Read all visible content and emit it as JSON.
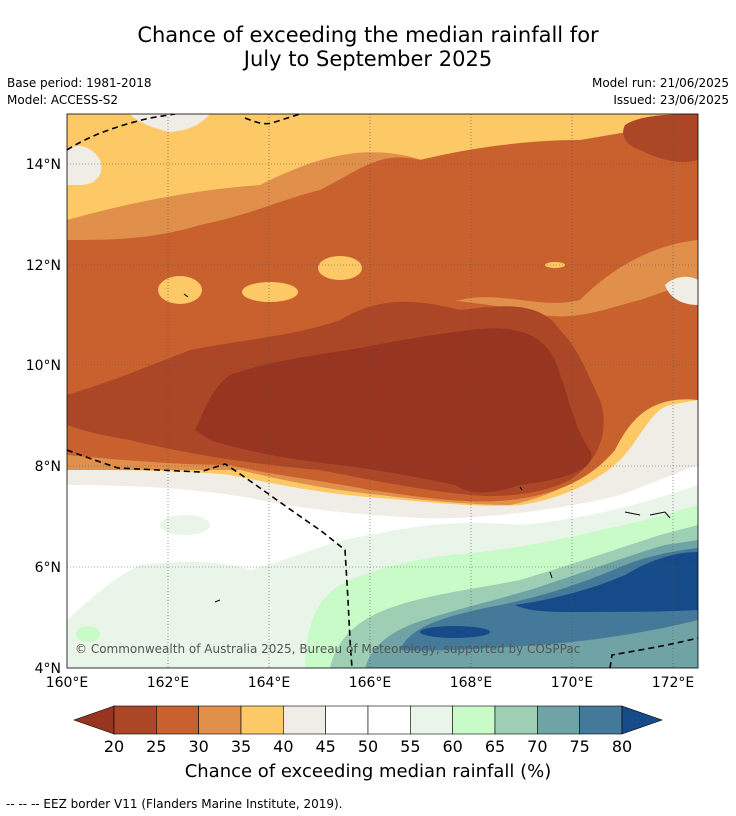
{
  "header": {
    "title_line1": "Chance of exceeding the median rainfall for",
    "title_line2": "July to September 2025",
    "base_period": "Base period: 1981-2018",
    "model": "Model: ACCESS-S2",
    "model_run": "Model run: 21/06/2025",
    "issued": "Issued: 23/06/2025"
  },
  "map": {
    "lat_ticks": [
      "14°N",
      "12°N",
      "10°N",
      "8°N",
      "6°N",
      "4°N"
    ],
    "lon_ticks": [
      "160°E",
      "162°E",
      "164°E",
      "166°E",
      "168°E",
      "170°E",
      "172°E"
    ],
    "lat_values": [
      14,
      12,
      10,
      8,
      6,
      4
    ],
    "lon_values": [
      160,
      162,
      164,
      166,
      168,
      170,
      172
    ],
    "extent": {
      "lon_min": 160,
      "lon_max": 172.5,
      "lat_min": 4,
      "lat_max": 15
    },
    "copyright": "© Commonwealth of Australia 2025, Bureau of Meteorology, supported by COSPPac"
  },
  "colorbar": {
    "ticks": [
      "20",
      "25",
      "30",
      "35",
      "40",
      "45",
      "50",
      "55",
      "60",
      "65",
      "70",
      "75",
      "80"
    ],
    "colors": [
      "#ab4726",
      "#c9612f",
      "#e0904a",
      "#fdc967",
      "#f0ece6",
      "#ffffff",
      "#ffffff",
      "#e8f5e8",
      "#c9fbc8",
      "#9ecfb5",
      "#6fa3a5",
      "#45799a"
    ],
    "under_color": "#983520",
    "over_color": "#154b88",
    "title": "Chance of exceeding median rainfall (%)"
  },
  "footnote": "--  --  -- EEZ border V11 (Flanders Marine Institute, 2019)."
}
